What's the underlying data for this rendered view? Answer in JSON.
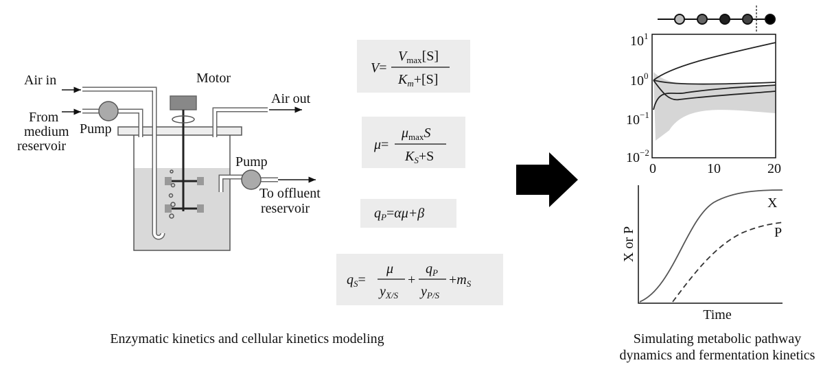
{
  "left": {
    "labels": {
      "air_in": "Air in",
      "from": "From",
      "medium": "medium",
      "reservoir": "reservoir",
      "pump_left": "Pump",
      "motor": "Motor",
      "air_out": "Air out",
      "pump_right": "Pump",
      "to_offluent": "To offluent",
      "reservoir_right": "reservoir"
    },
    "caption": "Enzymatic kinetics and cellular kinetics modeling"
  },
  "equations": [
    {
      "lhs": "V",
      "eq": "=",
      "num_main": "V",
      "num_sub": "max",
      "num_rest": "[S]",
      "den_main": "K",
      "den_sub": "m",
      "den_rest": "+[S]"
    },
    {
      "lhs": "μ",
      "eq": "=",
      "num_main": "μ",
      "num_sub": "max",
      "num_rest": "S",
      "den_main": "K",
      "den_sub": "S",
      "den_rest": "+S"
    },
    {
      "lhs": "q",
      "lhs_sub": "P",
      "eq": "=",
      "rhs": "αμ+β"
    },
    {
      "lhs": "q",
      "lhs_sub": "S",
      "eq": "=",
      "frac1_num": "μ",
      "frac1_den": "y",
      "frac1_den_sub": "X/S",
      "plus1": "+",
      "frac2_num": "q",
      "frac2_num_sub": "P",
      "frac2_den": "y",
      "frac2_den_sub": "P/S",
      "plus2": "+",
      "last": "m",
      "last_sub": "S"
    }
  ],
  "right": {
    "top_plot": {
      "yticks": [
        {
          "base": "10",
          "exp": "1"
        },
        {
          "base": "10",
          "exp": "0"
        },
        {
          "base": "10",
          "exp": "−1"
        },
        {
          "base": "10",
          "exp": "−2"
        }
      ],
      "xticks": [
        "0",
        "10",
        "20"
      ]
    },
    "bottom_plot": {
      "x_label": "Time",
      "y_label": "X or P",
      "curve_x": "X",
      "curve_p": "P"
    },
    "caption_line1": "Simulating metabolic pathway",
    "caption_line2": "dynamics and fermentation kinetics"
  }
}
